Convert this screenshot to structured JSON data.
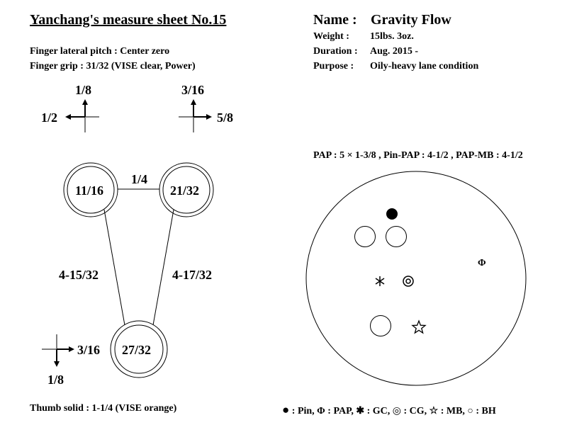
{
  "header": {
    "title": "Yanchang's measure sheet No.15",
    "lateral_pitch": "Finger lateral pitch : Center zero",
    "finger_grip": "Finger grip : 31/32 (VISE clear, Power)"
  },
  "ball_info": {
    "name_label": "Name :",
    "name_value": "Gravity Flow",
    "weight_label": "Weight :",
    "weight_value": "15lbs. 3oz.",
    "duration_label": "Duration :",
    "duration_value": "Aug. 2015 -",
    "purpose_label": "Purpose :",
    "purpose_value": "Oily-heavy lane condition"
  },
  "pitches": {
    "left_finger": {
      "up": "1/8",
      "side": "1/2"
    },
    "right_finger": {
      "up": "3/16",
      "side": "5/8"
    },
    "thumb": {
      "down": "1/8",
      "side": "3/16"
    }
  },
  "holes": {
    "left_finger": "11/16",
    "right_finger": "21/32",
    "thumb": "27/32",
    "bridge": "1/4",
    "left_span": "4-15/32",
    "right_span": "4-17/32"
  },
  "thumb_solid": "Thumb solid : 1-1/4 (VISE orange)",
  "layout_spec": "PAP : 5 × 1-3/8 , Pin-PAP : 4-1/2 , PAP-MB : 4-1/2",
  "legend": {
    "pin_symbol": "●",
    "pin": " : Pin, ",
    "pap_symbol": "Φ",
    "pap": " : PAP, ",
    "gc_symbol": "✱",
    "gc": " : GC, ",
    "cg_symbol": "◎",
    "cg": " : CG, ",
    "mb_symbol": "☆",
    "mb": " : MB, ",
    "bh_symbol": "○",
    "bh": " : BH"
  },
  "ball_markers": {
    "pap_symbol": "Φ"
  },
  "colors": {
    "ink": "#000000",
    "crosshair_gray": "#808080"
  }
}
